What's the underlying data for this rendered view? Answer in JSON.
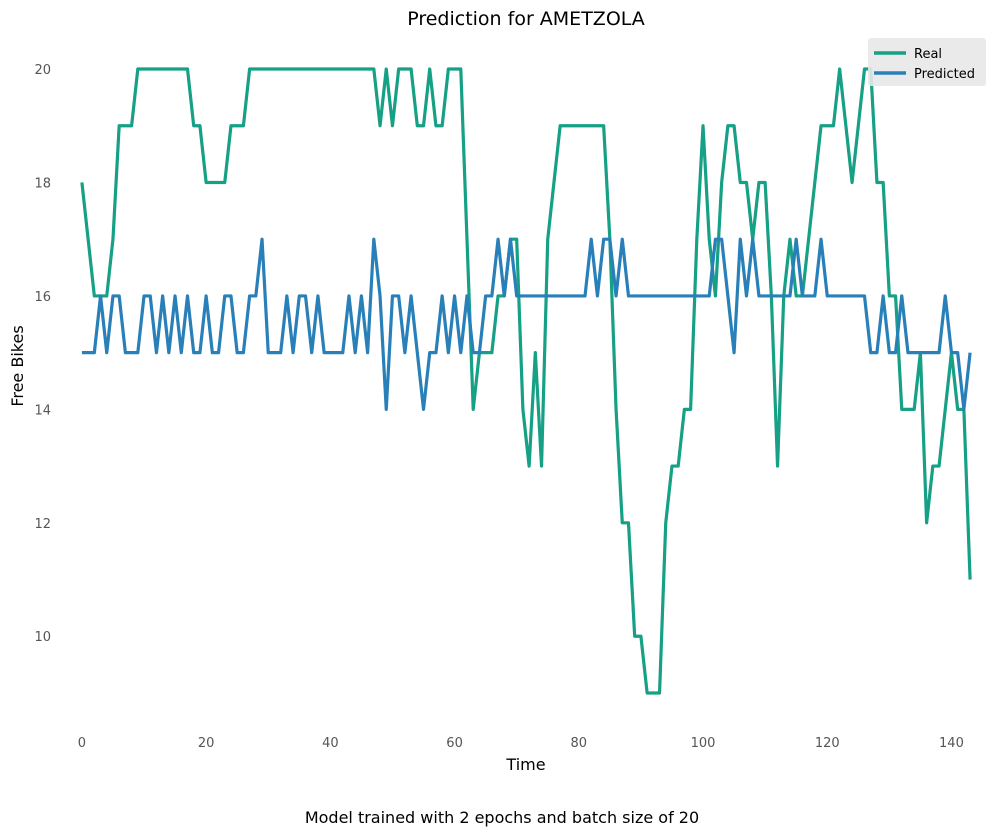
{
  "chart_data": {
    "type": "line",
    "title": "Prediction for AMETZOLA",
    "xlabel": "Time",
    "ylabel": "Free Bikes",
    "xlim": [
      -2.4,
      145.4
    ],
    "ylim": [
      8.4,
      20.6
    ],
    "xticks": [
      0,
      20,
      40,
      60,
      80,
      100,
      120,
      140
    ],
    "yticks": [
      10,
      12,
      14,
      16,
      18,
      20
    ],
    "grid": false,
    "legend_position": "top-right",
    "series": [
      {
        "name": "Real",
        "color": "#16a085",
        "values": [
          18,
          17,
          16,
          16,
          16,
          17,
          19,
          19,
          19,
          20,
          20,
          20,
          20,
          20,
          20,
          20,
          20,
          20,
          19,
          19,
          18,
          18,
          18,
          18,
          19,
          19,
          19,
          20,
          20,
          20,
          20,
          20,
          20,
          20,
          20,
          20,
          20,
          20,
          20,
          20,
          20,
          20,
          20,
          20,
          20,
          20,
          20,
          20,
          19,
          20,
          19,
          20,
          20,
          20,
          19,
          19,
          20,
          19,
          19,
          20,
          20,
          20,
          17,
          14,
          15,
          15,
          15,
          16,
          16,
          17,
          17,
          14,
          13,
          15,
          13,
          17,
          18,
          19,
          19,
          19,
          19,
          19,
          19,
          19,
          19,
          17,
          14,
          12,
          12,
          10,
          10,
          9,
          9,
          9,
          12,
          13,
          13,
          14,
          14,
          17,
          19,
          17,
          16,
          18,
          19,
          19,
          18,
          18,
          17,
          18,
          18,
          16,
          13,
          16,
          17,
          16,
          16,
          17,
          18,
          19,
          19,
          19,
          20,
          19,
          18,
          19,
          20,
          20,
          18,
          18,
          16,
          16,
          14,
          14,
          14,
          15,
          12,
          13,
          13,
          14,
          15,
          14,
          14,
          11
        ]
      },
      {
        "name": "Predicted",
        "color": "#2980b9",
        "values": [
          15,
          15,
          15,
          16,
          15,
          16,
          16,
          15,
          15,
          15,
          16,
          16,
          15,
          16,
          15,
          16,
          15,
          16,
          15,
          15,
          16,
          15,
          15,
          16,
          16,
          15,
          15,
          16,
          16,
          17,
          15,
          15,
          15,
          16,
          15,
          16,
          16,
          15,
          16,
          15,
          15,
          15,
          15,
          16,
          15,
          16,
          15,
          17,
          16,
          14,
          16,
          16,
          15,
          16,
          15,
          14,
          15,
          15,
          16,
          15,
          16,
          15,
          16,
          15,
          15,
          16,
          16,
          17,
          16,
          17,
          16,
          16,
          16,
          16,
          16,
          16,
          16,
          16,
          16,
          16,
          16,
          16,
          17,
          16,
          17,
          17,
          16,
          17,
          16,
          16,
          16,
          16,
          16,
          16,
          16,
          16,
          16,
          16,
          16,
          16,
          16,
          16,
          17,
          17,
          16,
          15,
          17,
          16,
          17,
          16,
          16,
          16,
          16,
          16,
          16,
          17,
          16,
          16,
          16,
          17,
          16,
          16,
          16,
          16,
          16,
          16,
          16,
          15,
          15,
          16,
          15,
          15,
          16,
          15,
          15,
          15,
          15,
          15,
          15,
          16,
          15,
          15,
          14,
          15
        ]
      }
    ]
  },
  "caption": "Model trained with 2 epochs and batch size of 20"
}
